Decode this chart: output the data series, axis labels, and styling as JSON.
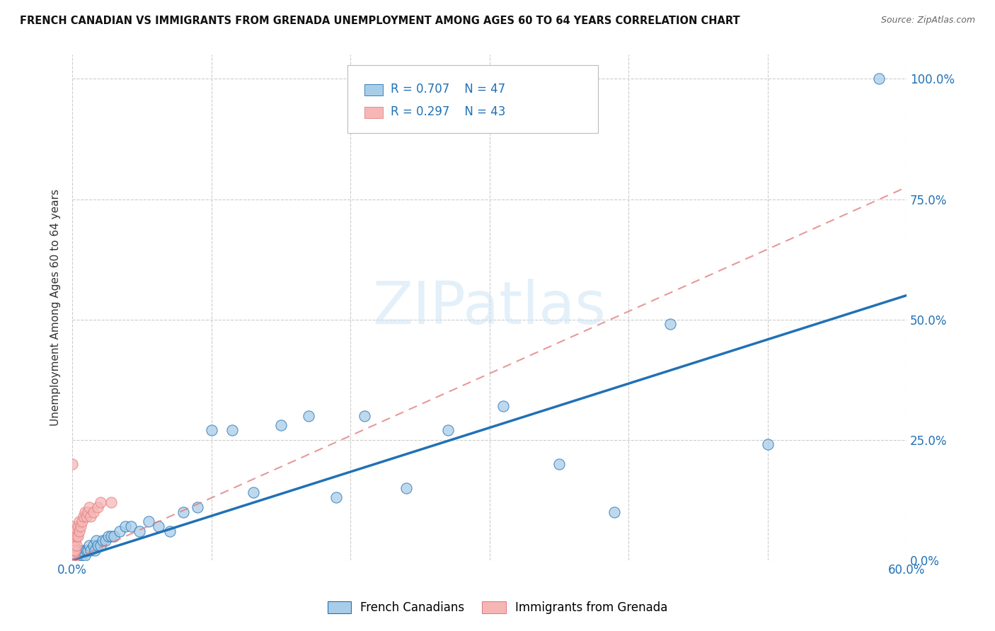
{
  "title": "FRENCH CANADIAN VS IMMIGRANTS FROM GRENADA UNEMPLOYMENT AMONG AGES 60 TO 64 YEARS CORRELATION CHART",
  "source": "Source: ZipAtlas.com",
  "ylabel": "Unemployment Among Ages 60 to 64 years",
  "xlim": [
    0.0,
    0.6
  ],
  "ylim": [
    0.0,
    1.05
  ],
  "ytick_vals": [
    0.0,
    0.25,
    0.5,
    0.75,
    1.0
  ],
  "ytick_labels": [
    "0.0%",
    "25.0%",
    "50.0%",
    "75.0%",
    "100.0%"
  ],
  "xtick_vals": [
    0.0,
    0.1,
    0.2,
    0.3,
    0.4,
    0.5,
    0.6
  ],
  "xtick_labels": [
    "0.0%",
    "",
    "",
    "",
    "",
    "",
    "60.0%"
  ],
  "background_color": "#ffffff",
  "watermark_text": "ZIPatlas",
  "legend_R1": "R = 0.707",
  "legend_N1": "N = 47",
  "legend_R2": "R = 0.297",
  "legend_N2": "N = 43",
  "blue_scatter_color": "#a8cde8",
  "blue_line_color": "#2171b5",
  "pink_scatter_color": "#f7b6b6",
  "pink_line_color": "#e08080",
  "grid_color": "#cccccc",
  "french_canadian_x": [
    0.001,
    0.002,
    0.003,
    0.004,
    0.005,
    0.006,
    0.007,
    0.008,
    0.009,
    0.01,
    0.011,
    0.012,
    0.013,
    0.015,
    0.016,
    0.017,
    0.018,
    0.02,
    0.022,
    0.024,
    0.026,
    0.028,
    0.03,
    0.034,
    0.038,
    0.042,
    0.048,
    0.055,
    0.062,
    0.07,
    0.08,
    0.09,
    0.1,
    0.115,
    0.13,
    0.15,
    0.17,
    0.19,
    0.21,
    0.24,
    0.27,
    0.31,
    0.35,
    0.39,
    0.43,
    0.5,
    0.58
  ],
  "french_canadian_y": [
    0.0,
    0.0,
    0.01,
    0.0,
    0.02,
    0.01,
    0.01,
    0.02,
    0.01,
    0.02,
    0.02,
    0.03,
    0.02,
    0.03,
    0.02,
    0.04,
    0.03,
    0.03,
    0.04,
    0.04,
    0.05,
    0.05,
    0.05,
    0.06,
    0.07,
    0.07,
    0.06,
    0.08,
    0.07,
    0.06,
    0.1,
    0.11,
    0.27,
    0.27,
    0.14,
    0.28,
    0.3,
    0.13,
    0.3,
    0.15,
    0.27,
    0.32,
    0.2,
    0.1,
    0.49,
    0.24,
    1.0
  ],
  "grenada_x": [
    0.0,
    0.0,
    0.0,
    0.0,
    0.0,
    0.0,
    0.0,
    0.0,
    0.0,
    0.0,
    0.0,
    0.0,
    0.0,
    0.0,
    0.0,
    0.0,
    0.0,
    0.001,
    0.001,
    0.001,
    0.001,
    0.001,
    0.002,
    0.002,
    0.002,
    0.003,
    0.003,
    0.004,
    0.004,
    0.005,
    0.005,
    0.006,
    0.007,
    0.008,
    0.009,
    0.01,
    0.011,
    0.012,
    0.013,
    0.015,
    0.018,
    0.02,
    0.028
  ],
  "grenada_y": [
    0.0,
    0.0,
    0.0,
    0.0,
    0.01,
    0.01,
    0.02,
    0.02,
    0.03,
    0.03,
    0.04,
    0.04,
    0.05,
    0.05,
    0.06,
    0.07,
    0.2,
    0.0,
    0.01,
    0.02,
    0.03,
    0.04,
    0.02,
    0.04,
    0.06,
    0.03,
    0.05,
    0.05,
    0.07,
    0.06,
    0.08,
    0.07,
    0.08,
    0.09,
    0.1,
    0.09,
    0.1,
    0.11,
    0.09,
    0.1,
    0.11,
    0.12,
    0.12
  ],
  "blue_trend_x": [
    0.0,
    0.6
  ],
  "blue_trend_y": [
    0.0,
    0.55
  ],
  "pink_trend_x": [
    0.0,
    0.6
  ],
  "pink_trend_y": [
    0.0,
    0.775
  ]
}
